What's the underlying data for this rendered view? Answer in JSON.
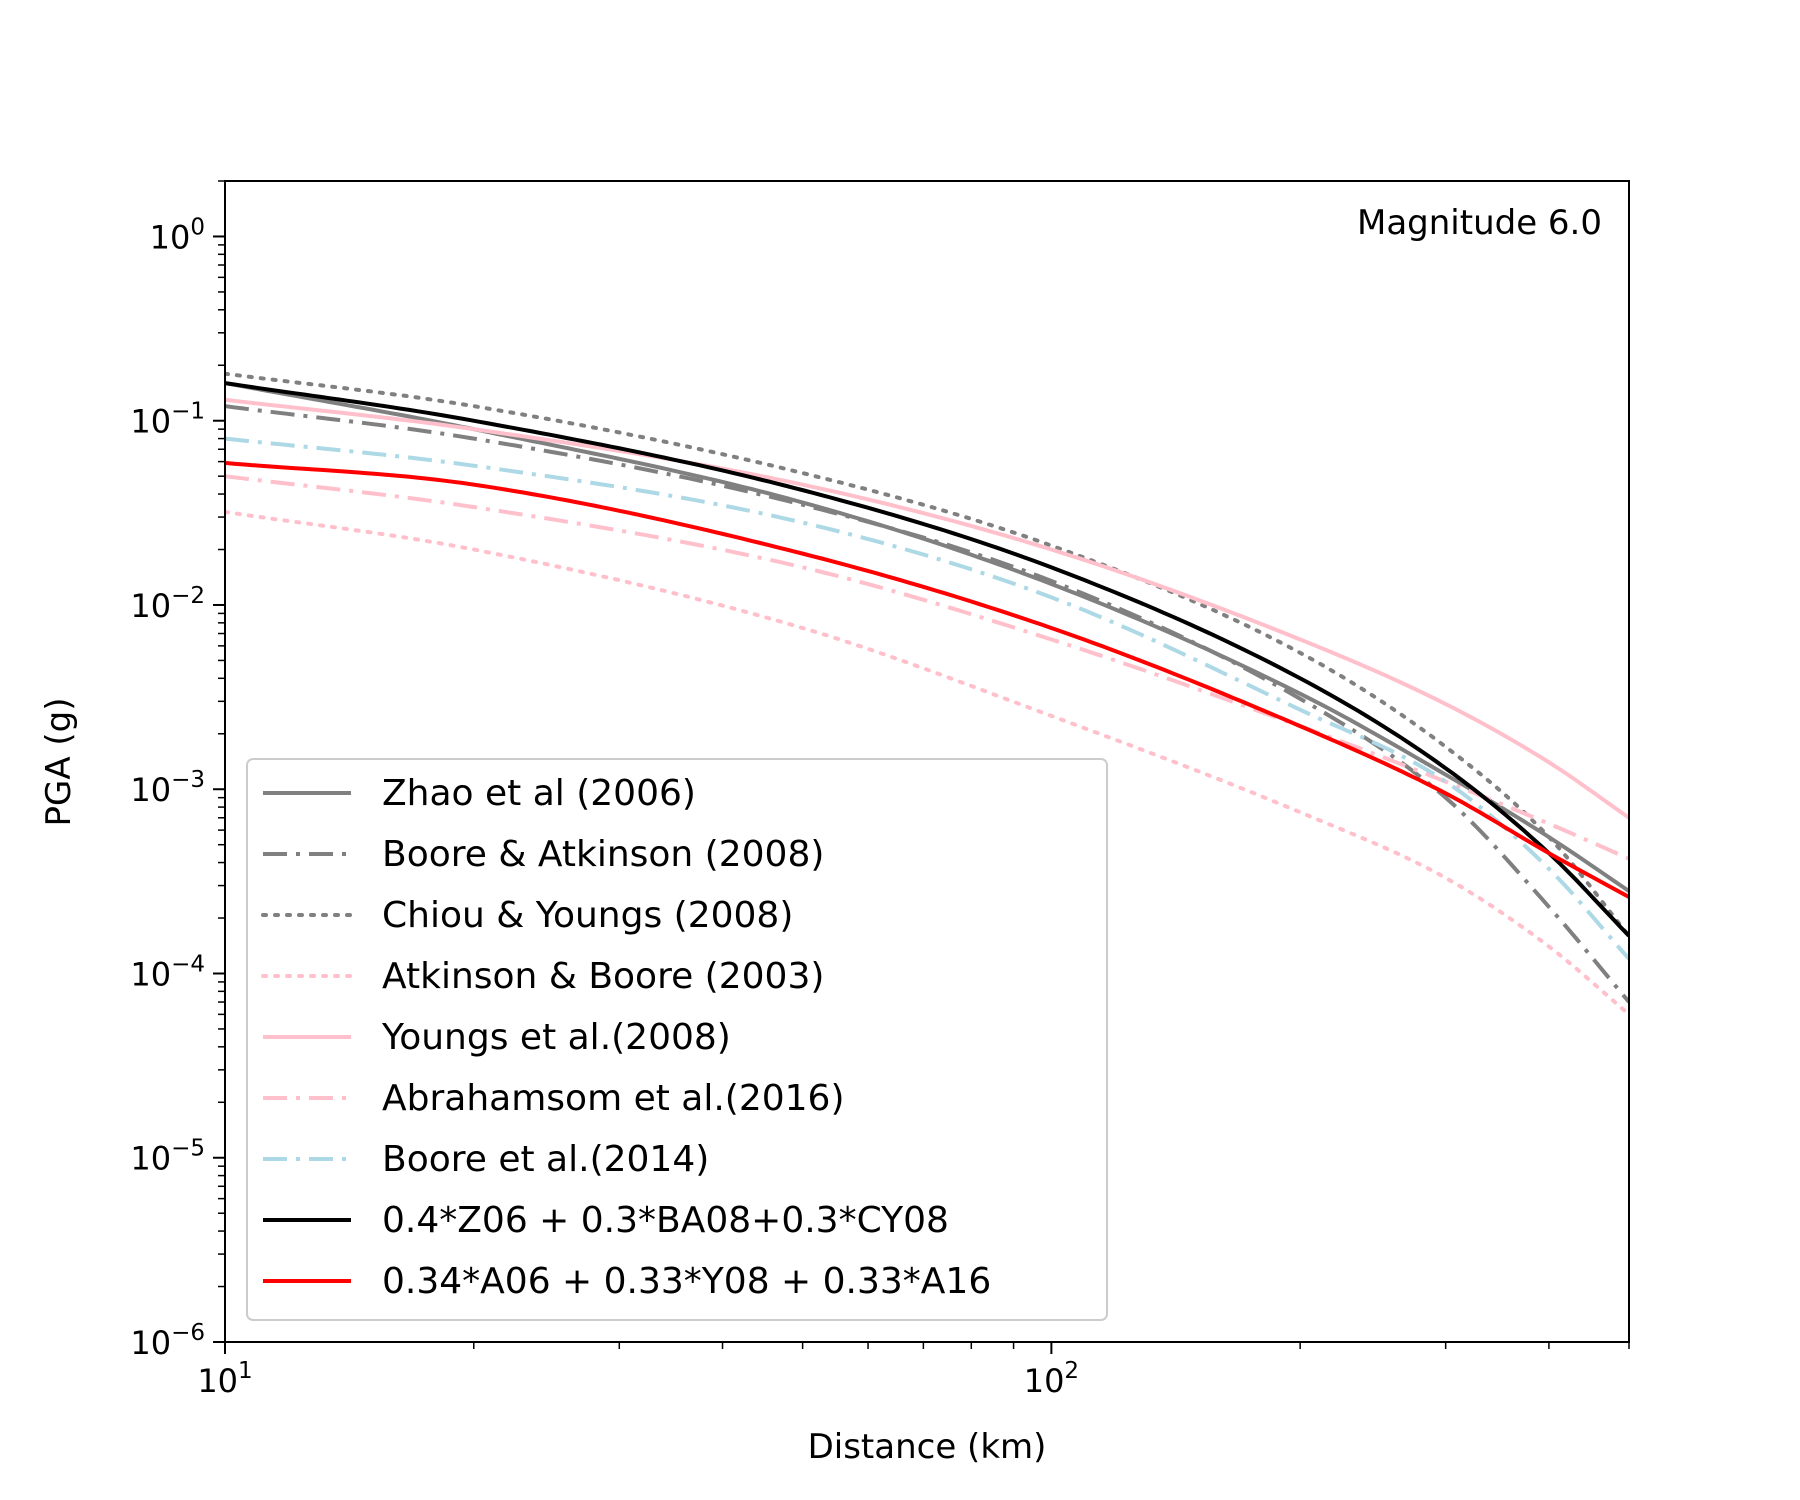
{
  "chart_data": {
    "type": "line",
    "annotation": "Magnitude 6.0",
    "xlabel": "Distance (km)",
    "ylabel": "PGA (g)",
    "xscale": "log",
    "yscale": "log",
    "xlim": [
      10,
      500
    ],
    "ylim": [
      1e-06,
      2
    ],
    "x_ticks": [
      {
        "value": 10,
        "base": "10",
        "exp": "1"
      },
      {
        "value": 100,
        "base": "10",
        "exp": "2"
      }
    ],
    "y_ticks": [
      {
        "value": 1,
        "base": "10",
        "exp": "0"
      },
      {
        "value": 0.1,
        "base": "10",
        "exp": "−1"
      },
      {
        "value": 0.01,
        "base": "10",
        "exp": "−2"
      },
      {
        "value": 0.001,
        "base": "10",
        "exp": "−3"
      },
      {
        "value": 0.0001,
        "base": "10",
        "exp": "−4"
      },
      {
        "value": 1e-05,
        "base": "10",
        "exp": "−5"
      },
      {
        "value": 1e-06,
        "base": "10",
        "exp": "−6"
      }
    ],
    "grid": false,
    "legend_position": "lower-left",
    "series": [
      {
        "name": "Zhao et al (2006)",
        "color": "#808080",
        "dash": "solid",
        "x": [
          10,
          20,
          50,
          100,
          200,
          300,
          400,
          500
        ],
        "y": [
          0.16,
          0.09,
          0.036,
          0.013,
          0.0033,
          0.0012,
          0.00055,
          0.00028
        ]
      },
      {
        "name": "Boore & Atkinson (2008)",
        "color": "#808080",
        "dash": "dashdot",
        "x": [
          10,
          20,
          50,
          100,
          200,
          300,
          400,
          500
        ],
        "y": [
          0.12,
          0.08,
          0.035,
          0.0135,
          0.0031,
          0.0009,
          0.00023,
          7e-05
        ]
      },
      {
        "name": "Chiou & Youngs (2008)",
        "color": "#808080",
        "dash": "dotted",
        "x": [
          10,
          20,
          50,
          100,
          200,
          300,
          400,
          500
        ],
        "y": [
          0.18,
          0.12,
          0.052,
          0.021,
          0.0055,
          0.0017,
          0.00055,
          0.00016
        ]
      },
      {
        "name": "Atkinson & Boore (2003)",
        "color": "#ffc0cb",
        "dash": "dotted",
        "x": [
          10,
          20,
          50,
          100,
          200,
          300,
          400,
          500
        ],
        "y": [
          0.032,
          0.02,
          0.0075,
          0.0025,
          0.00075,
          0.00033,
          0.00014,
          6e-05
        ]
      },
      {
        "name": "Youngs et al.(2008)",
        "color": "#ffc0cb",
        "dash": "solid",
        "x": [
          10,
          20,
          50,
          100,
          200,
          300,
          400,
          500
        ],
        "y": [
          0.13,
          0.09,
          0.045,
          0.02,
          0.0065,
          0.0029,
          0.0014,
          0.0007
        ]
      },
      {
        "name": "Abrahamsom et al.(2016)",
        "color": "#ffc0cb",
        "dash": "dashdot",
        "x": [
          10,
          20,
          50,
          100,
          200,
          300,
          400,
          500
        ],
        "y": [
          0.05,
          0.034,
          0.016,
          0.0065,
          0.0022,
          0.0011,
          0.00065,
          0.00042
        ]
      },
      {
        "name": "Boore et al.(2014)",
        "color": "#add8e6",
        "dash": "dashdot",
        "x": [
          10,
          20,
          50,
          100,
          200,
          300,
          400,
          500
        ],
        "y": [
          0.08,
          0.057,
          0.028,
          0.011,
          0.0027,
          0.0011,
          0.00037,
          0.00012
        ]
      },
      {
        "name": "0.4*Z06 + 0.3*BA08+0.3*CY08",
        "color": "#000000",
        "dash": "solid",
        "x": [
          10,
          20,
          50,
          100,
          200,
          300,
          400,
          500
        ],
        "y": [
          0.16,
          0.1,
          0.042,
          0.016,
          0.004,
          0.0013,
          0.00045,
          0.00016
        ]
      },
      {
        "name": "0.34*A06 + 0.33*Y08 + 0.33*A16",
        "color": "#ff0000",
        "dash": "solid",
        "x": [
          10,
          20,
          50,
          100,
          200,
          300,
          400,
          500
        ],
        "y": [
          0.059,
          0.045,
          0.019,
          0.0075,
          0.0022,
          0.00095,
          0.00045,
          0.00026
        ]
      }
    ]
  }
}
